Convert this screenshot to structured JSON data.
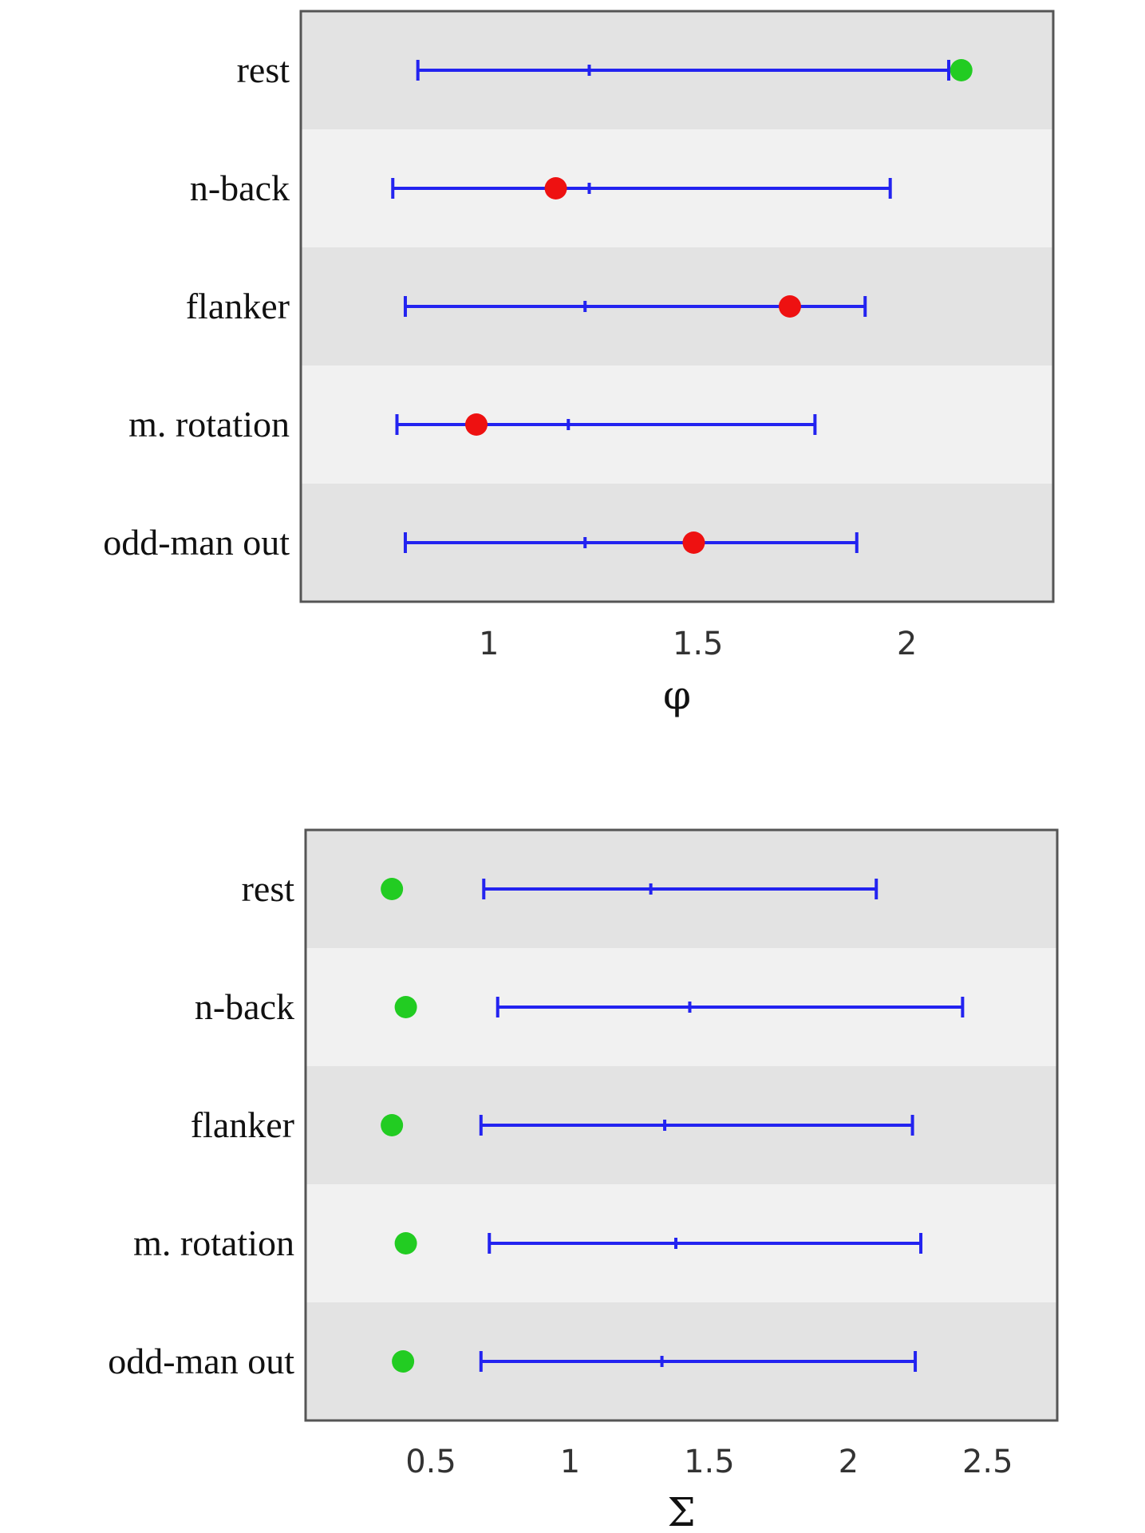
{
  "chart_data": [
    {
      "type": "errorbar",
      "xlabel": "φ",
      "ylabel": "",
      "title": "",
      "xlim": [
        0.55,
        2.35
      ],
      "x_ticks": [
        1,
        1.5,
        2
      ],
      "x_tick_labels": [
        "1",
        "1.5",
        "2"
      ],
      "grid": false,
      "categories": [
        "rest",
        "n-back",
        "flanker",
        "m. rotation",
        "odd-man out"
      ],
      "intervals": [
        {
          "low": 0.83,
          "mid": 1.24,
          "high": 2.1
        },
        {
          "low": 0.77,
          "mid": 1.24,
          "high": 1.96
        },
        {
          "low": 0.8,
          "mid": 1.23,
          "high": 1.9
        },
        {
          "low": 0.78,
          "mid": 1.19,
          "high": 1.78
        },
        {
          "low": 0.8,
          "mid": 1.23,
          "high": 1.88
        }
      ],
      "observed": [
        2.13,
        1.16,
        1.72,
        0.97,
        1.49
      ],
      "observed_colors": [
        "#22cc22",
        "#ee1111",
        "#ee1111",
        "#ee1111",
        "#ee1111"
      ]
    },
    {
      "type": "errorbar",
      "xlabel": "Σ",
      "ylabel": "",
      "title": "",
      "xlim": [
        0.05,
        2.75
      ],
      "x_ticks": [
        0.5,
        1,
        1.5,
        2,
        2.5
      ],
      "x_tick_labels": [
        "0.5",
        "1",
        "1.5",
        "2",
        "2.5"
      ],
      "grid": false,
      "categories": [
        "rest",
        "n-back",
        "flanker",
        "m. rotation",
        "odd-man out"
      ],
      "intervals": [
        {
          "low": 0.69,
          "mid": 1.29,
          "high": 2.1
        },
        {
          "low": 0.74,
          "mid": 1.43,
          "high": 2.41
        },
        {
          "low": 0.68,
          "mid": 1.34,
          "high": 2.23
        },
        {
          "low": 0.71,
          "mid": 1.38,
          "high": 2.26
        },
        {
          "low": 0.68,
          "mid": 1.33,
          "high": 2.24
        }
      ],
      "observed": [
        0.36,
        0.41,
        0.36,
        0.41,
        0.4
      ],
      "observed_colors": [
        "#22cc22",
        "#22cc22",
        "#22cc22",
        "#22cc22",
        "#22cc22"
      ]
    }
  ],
  "colors": {
    "band_dark": "#e3e3e3",
    "band_light": "#f1f1f1",
    "interval": "#2323f0",
    "frame": "#555555"
  }
}
